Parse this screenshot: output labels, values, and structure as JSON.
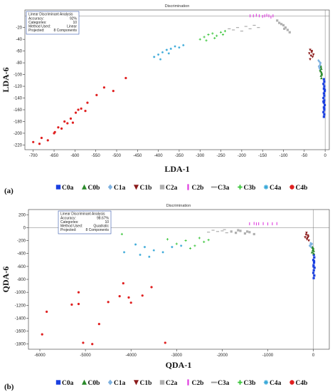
{
  "panels": [
    {
      "panel_label": "(a)",
      "legend_items": [
        "C0a",
        "C0b",
        "C1a",
        "C1b",
        "C2a",
        "C2b",
        "C3a",
        "C3b",
        "C4a",
        "C4b"
      ],
      "info_box": [
        "Linear Discriminant Analysis",
        "Accuracy:",
        "92%",
        "Categories:",
        "10",
        "Method Used:",
        "Linear",
        "Projected:",
        "8 Components"
      ]
    },
    {
      "panel_label": "(b)",
      "legend_items": [
        "C0a",
        "C0b",
        "C1a",
        "C1b",
        "C2a",
        "C2b",
        "C3a",
        "C3b",
        "C4a",
        "C4b"
      ],
      "info_box": [
        "Linear Discriminant Analysis",
        "Accuracy:",
        "98.67%",
        "Categories:",
        "10",
        "Method Used:",
        "Quadratic",
        "Projected:",
        "8 Components"
      ]
    }
  ],
  "chart_data": [
    {
      "type": "scatter",
      "title": "Discrimination",
      "xlabel": "LDA-1",
      "ylabel": "LDA-6",
      "xlim": [
        -720,
        10
      ],
      "ylim": [
        -228,
        10
      ],
      "xticks": [
        -700,
        -650,
        -600,
        -550,
        -500,
        -450,
        -400,
        -350,
        -300,
        -250,
        -200,
        -150,
        -100,
        -50,
        0
      ],
      "yticks": [
        -20,
        -40,
        -60,
        -80,
        -100,
        -120,
        -140,
        -160,
        -180,
        -200,
        -220
      ],
      "grid": false,
      "legend_position": "bottom",
      "series": [
        {
          "name": "C0a",
          "color": "#1a3fe0",
          "marker": "square",
          "points": [
            [
              -3,
              -108
            ],
            [
              -2,
              -112
            ],
            [
              -4,
              -116
            ],
            [
              -2,
              -120
            ],
            [
              -3,
              -124
            ],
            [
              -1,
              -128
            ],
            [
              -3,
              -132
            ],
            [
              -2,
              -136
            ],
            [
              -4,
              -140
            ],
            [
              -2,
              -144
            ],
            [
              -3,
              -148
            ],
            [
              -1,
              -152
            ],
            [
              -3,
              -156
            ],
            [
              -2,
              -160
            ],
            [
              -4,
              -164
            ],
            [
              -2,
              -168
            ],
            [
              -3,
              -172
            ],
            [
              -1,
              -126
            ],
            [
              -4,
              -146
            ],
            [
              -2,
              -158
            ]
          ]
        },
        {
          "name": "C0b",
          "color": "#2a8a2a",
          "marker": "triangle",
          "points": [
            [
              -10,
              -86
            ],
            [
              -9,
              -90
            ],
            [
              -11,
              -94
            ],
            [
              -8,
              -98
            ],
            [
              -10,
              -102
            ],
            [
              -9,
              -106
            ],
            [
              -12,
              -92
            ],
            [
              -8,
              -100
            ],
            [
              -11,
              -88
            ],
            [
              -9,
              -96
            ]
          ]
        },
        {
          "name": "C1a",
          "color": "#7fb2e0",
          "marker": "diamond",
          "points": [
            [
              -14,
              -78
            ],
            [
              -12,
              -82
            ],
            [
              -15,
              -86
            ],
            [
              -13,
              -90
            ],
            [
              -11,
              -80
            ],
            [
              -14,
              -88
            ],
            [
              -12,
              -84
            ],
            [
              -16,
              -76
            ]
          ]
        },
        {
          "name": "C1b",
          "color": "#8b1a1a",
          "marker": "triangle-down",
          "points": [
            [
              -36,
              -58
            ],
            [
              -32,
              -62
            ],
            [
              -38,
              -64
            ],
            [
              -34,
              -68
            ],
            [
              -30,
              -70
            ],
            [
              -36,
              -74
            ],
            [
              -32,
              -60
            ],
            [
              -28,
              -66
            ]
          ]
        },
        {
          "name": "C2a",
          "color": "#b0b0b0",
          "marker": "square",
          "points": [
            [
              -115,
              -8
            ],
            [
              -110,
              -12
            ],
            [
              -100,
              -16
            ],
            [
              -95,
              -20
            ],
            [
              -90,
              -24
            ],
            [
              -85,
              -28
            ],
            [
              -105,
              -14
            ],
            [
              -98,
              -22
            ]
          ]
        },
        {
          "name": "C2b",
          "color": "#e040e0",
          "marker": "bar",
          "points": [
            [
              -180,
              0
            ],
            [
              -172,
              0
            ],
            [
              -165,
              1
            ],
            [
              -158,
              0
            ],
            [
              -150,
              -1
            ],
            [
              -145,
              0
            ],
            [
              -140,
              1
            ],
            [
              -135,
              0
            ],
            [
              -130,
              -2
            ],
            [
              -125,
              0
            ]
          ]
        },
        {
          "name": "C3a",
          "color": "#999999",
          "marker": "dash",
          "points": [
            [
              -230,
              -22
            ],
            [
              -220,
              -24
            ],
            [
              -210,
              -20
            ],
            [
              -200,
              -26
            ],
            [
              -190,
              -18
            ],
            [
              -180,
              -22
            ],
            [
              -170,
              -16
            ],
            [
              -160,
              -20
            ]
          ]
        },
        {
          "name": "C3b",
          "color": "#36c436",
          "marker": "plus",
          "points": [
            [
              -300,
              -40
            ],
            [
              -290,
              -36
            ],
            [
              -280,
              -32
            ],
            [
              -270,
              -30
            ],
            [
              -260,
              -34
            ],
            [
              -250,
              -28
            ],
            [
              -240,
              -26
            ],
            [
              -285,
              -42
            ],
            [
              -265,
              -38
            ],
            [
              -245,
              -32
            ]
          ]
        },
        {
          "name": "C4a",
          "color": "#38a8d8",
          "marker": "star",
          "points": [
            [
              -410,
              -70
            ],
            [
              -400,
              -66
            ],
            [
              -390,
              -62
            ],
            [
              -380,
              -58
            ],
            [
              -370,
              -56
            ],
            [
              -360,
              -52
            ],
            [
              -350,
              -54
            ],
            [
              -340,
              -50
            ],
            [
              -395,
              -74
            ],
            [
              -375,
              -64
            ]
          ]
        },
        {
          "name": "C4b",
          "color": "#e02020",
          "marker": "circle",
          "points": [
            [
              -700,
              -215
            ],
            [
              -685,
              -218
            ],
            [
              -680,
              -208
            ],
            [
              -665,
              -212
            ],
            [
              -650,
              -200
            ],
            [
              -648,
              -198
            ],
            [
              -640,
              -190
            ],
            [
              -632,
              -192
            ],
            [
              -625,
              -180
            ],
            [
              -618,
              -183
            ],
            [
              -610,
              -175
            ],
            [
              -605,
              -182
            ],
            [
              -598,
              -165
            ],
            [
              -592,
              -160
            ],
            [
              -585,
              -158
            ],
            [
              -575,
              -162
            ],
            [
              -570,
              -148
            ],
            [
              -548,
              -135
            ],
            [
              -530,
              -122
            ],
            [
              -508,
              -128
            ],
            [
              -478,
              -106
            ]
          ]
        }
      ]
    },
    {
      "type": "scatter",
      "title": "Discrimination",
      "xlabel": "QDA-1",
      "ylabel": "QDA-6",
      "xlim": [
        -6250,
        350
      ],
      "ylim": [
        -1880,
        280
      ],
      "xticks": [
        -6000,
        -5000,
        -4000,
        -3000,
        -2000,
        -1000,
        0
      ],
      "yticks": [
        200,
        0,
        -200,
        -400,
        -600,
        -800,
        -1000,
        -1200,
        -1400,
        -1600,
        -1800
      ],
      "grid": false,
      "legend_position": "bottom",
      "series": [
        {
          "name": "C0a",
          "color": "#1a3fe0",
          "marker": "square",
          "points": [
            [
              10,
              -420
            ],
            [
              20,
              -460
            ],
            [
              0,
              -500
            ],
            [
              15,
              -540
            ],
            [
              5,
              -580
            ],
            [
              25,
              -620
            ],
            [
              10,
              -660
            ],
            [
              0,
              -700
            ],
            [
              20,
              -740
            ],
            [
              8,
              -780
            ],
            [
              15,
              -520
            ],
            [
              5,
              -600
            ]
          ]
        },
        {
          "name": "C0b",
          "color": "#2a8a2a",
          "marker": "triangle",
          "points": [
            [
              -20,
              -300
            ],
            [
              0,
              -320
            ],
            [
              -10,
              -340
            ],
            [
              10,
              -360
            ],
            [
              -30,
              -380
            ],
            [
              5,
              -400
            ],
            [
              -15,
              -310
            ],
            [
              -5,
              -350
            ]
          ]
        },
        {
          "name": "C1a",
          "color": "#7fb2e0",
          "marker": "diamond",
          "points": [
            [
              -60,
              -240
            ],
            [
              -40,
              -260
            ],
            [
              -80,
              -280
            ],
            [
              -50,
              -300
            ],
            [
              -30,
              -250
            ],
            [
              -70,
              -270
            ]
          ]
        },
        {
          "name": "C1b",
          "color": "#8b1a1a",
          "marker": "triangle-down",
          "points": [
            [
              -150,
              -80
            ],
            [
              -120,
              -120
            ],
            [
              -180,
              -150
            ],
            [
              -140,
              -180
            ],
            [
              -100,
              -200
            ],
            [
              -160,
              -110
            ],
            [
              -130,
              -160
            ],
            [
              -110,
              -140
            ]
          ]
        },
        {
          "name": "C2a",
          "color": "#b0b0b0",
          "marker": "square",
          "points": [
            [
              -1800,
              -60
            ],
            [
              -1700,
              -80
            ],
            [
              -1600,
              -50
            ],
            [
              -1500,
              -90
            ],
            [
              -1400,
              -70
            ],
            [
              -1300,
              -100
            ],
            [
              -1650,
              -40
            ],
            [
              -1450,
              -60
            ]
          ]
        },
        {
          "name": "C2b",
          "color": "#e040e0",
          "marker": "bar",
          "points": [
            [
              -1400,
              60
            ],
            [
              -1300,
              65
            ],
            [
              -1200,
              60
            ],
            [
              -1100,
              62
            ],
            [
              -1000,
              58
            ],
            [
              -900,
              60
            ],
            [
              -800,
              62
            ],
            [
              -1250,
              58
            ]
          ]
        },
        {
          "name": "C3a",
          "color": "#999999",
          "marker": "dash",
          "points": [
            [
              -2200,
              -40
            ],
            [
              -2100,
              -60
            ],
            [
              -2000,
              -50
            ],
            [
              -1900,
              -80
            ],
            [
              -2300,
              -70
            ],
            [
              -1950,
              -30
            ]
          ]
        },
        {
          "name": "C3b",
          "color": "#36c436",
          "marker": "plus",
          "points": [
            [
              -4200,
              -100
            ],
            [
              -3200,
              -180
            ],
            [
              -3000,
              -250
            ],
            [
              -2800,
              -200
            ],
            [
              -2600,
              -280
            ],
            [
              -2500,
              -160
            ],
            [
              -2400,
              -220
            ],
            [
              -2300,
              -190
            ],
            [
              -2700,
              -320
            ]
          ]
        },
        {
          "name": "C4a",
          "color": "#38a8d8",
          "marker": "star",
          "points": [
            [
              -4150,
              -380
            ],
            [
              -3800,
              -420
            ],
            [
              -3700,
              -300
            ],
            [
              -3500,
              -350
            ],
            [
              -3300,
              -380
            ],
            [
              -3100,
              -300
            ],
            [
              -2900,
              -280
            ],
            [
              -3900,
              -260
            ],
            [
              -3600,
              -450
            ]
          ]
        },
        {
          "name": "C4b",
          "color": "#e02020",
          "marker": "circle",
          "points": [
            [
              -5950,
              -1650
            ],
            [
              -5850,
              -1300
            ],
            [
              -5300,
              -1190
            ],
            [
              -5150,
              -1180
            ],
            [
              -5050,
              -1780
            ],
            [
              -4850,
              -1800
            ],
            [
              -4700,
              -1490
            ],
            [
              -4500,
              -1150
            ],
            [
              -4250,
              -1060
            ],
            [
              -4050,
              -1080
            ],
            [
              -3750,
              -1050
            ],
            [
              -3550,
              -920
            ],
            [
              -3250,
              -1780
            ],
            [
              -4170,
              -860
            ],
            [
              -5150,
              -1000
            ],
            [
              -4000,
              -1160
            ]
          ]
        }
      ],
      "annotations_note_sample": [
        "R150",
        "R161",
        "R143",
        "R160",
        "R137",
        "R135",
        "R139",
        "R149",
        "R136",
        "R145",
        "R147",
        "R144",
        "R142",
        "R146",
        "R148",
        "R133",
        "R124",
        "R117",
        "R122",
        "R130",
        "R104"
      ]
    }
  ]
}
